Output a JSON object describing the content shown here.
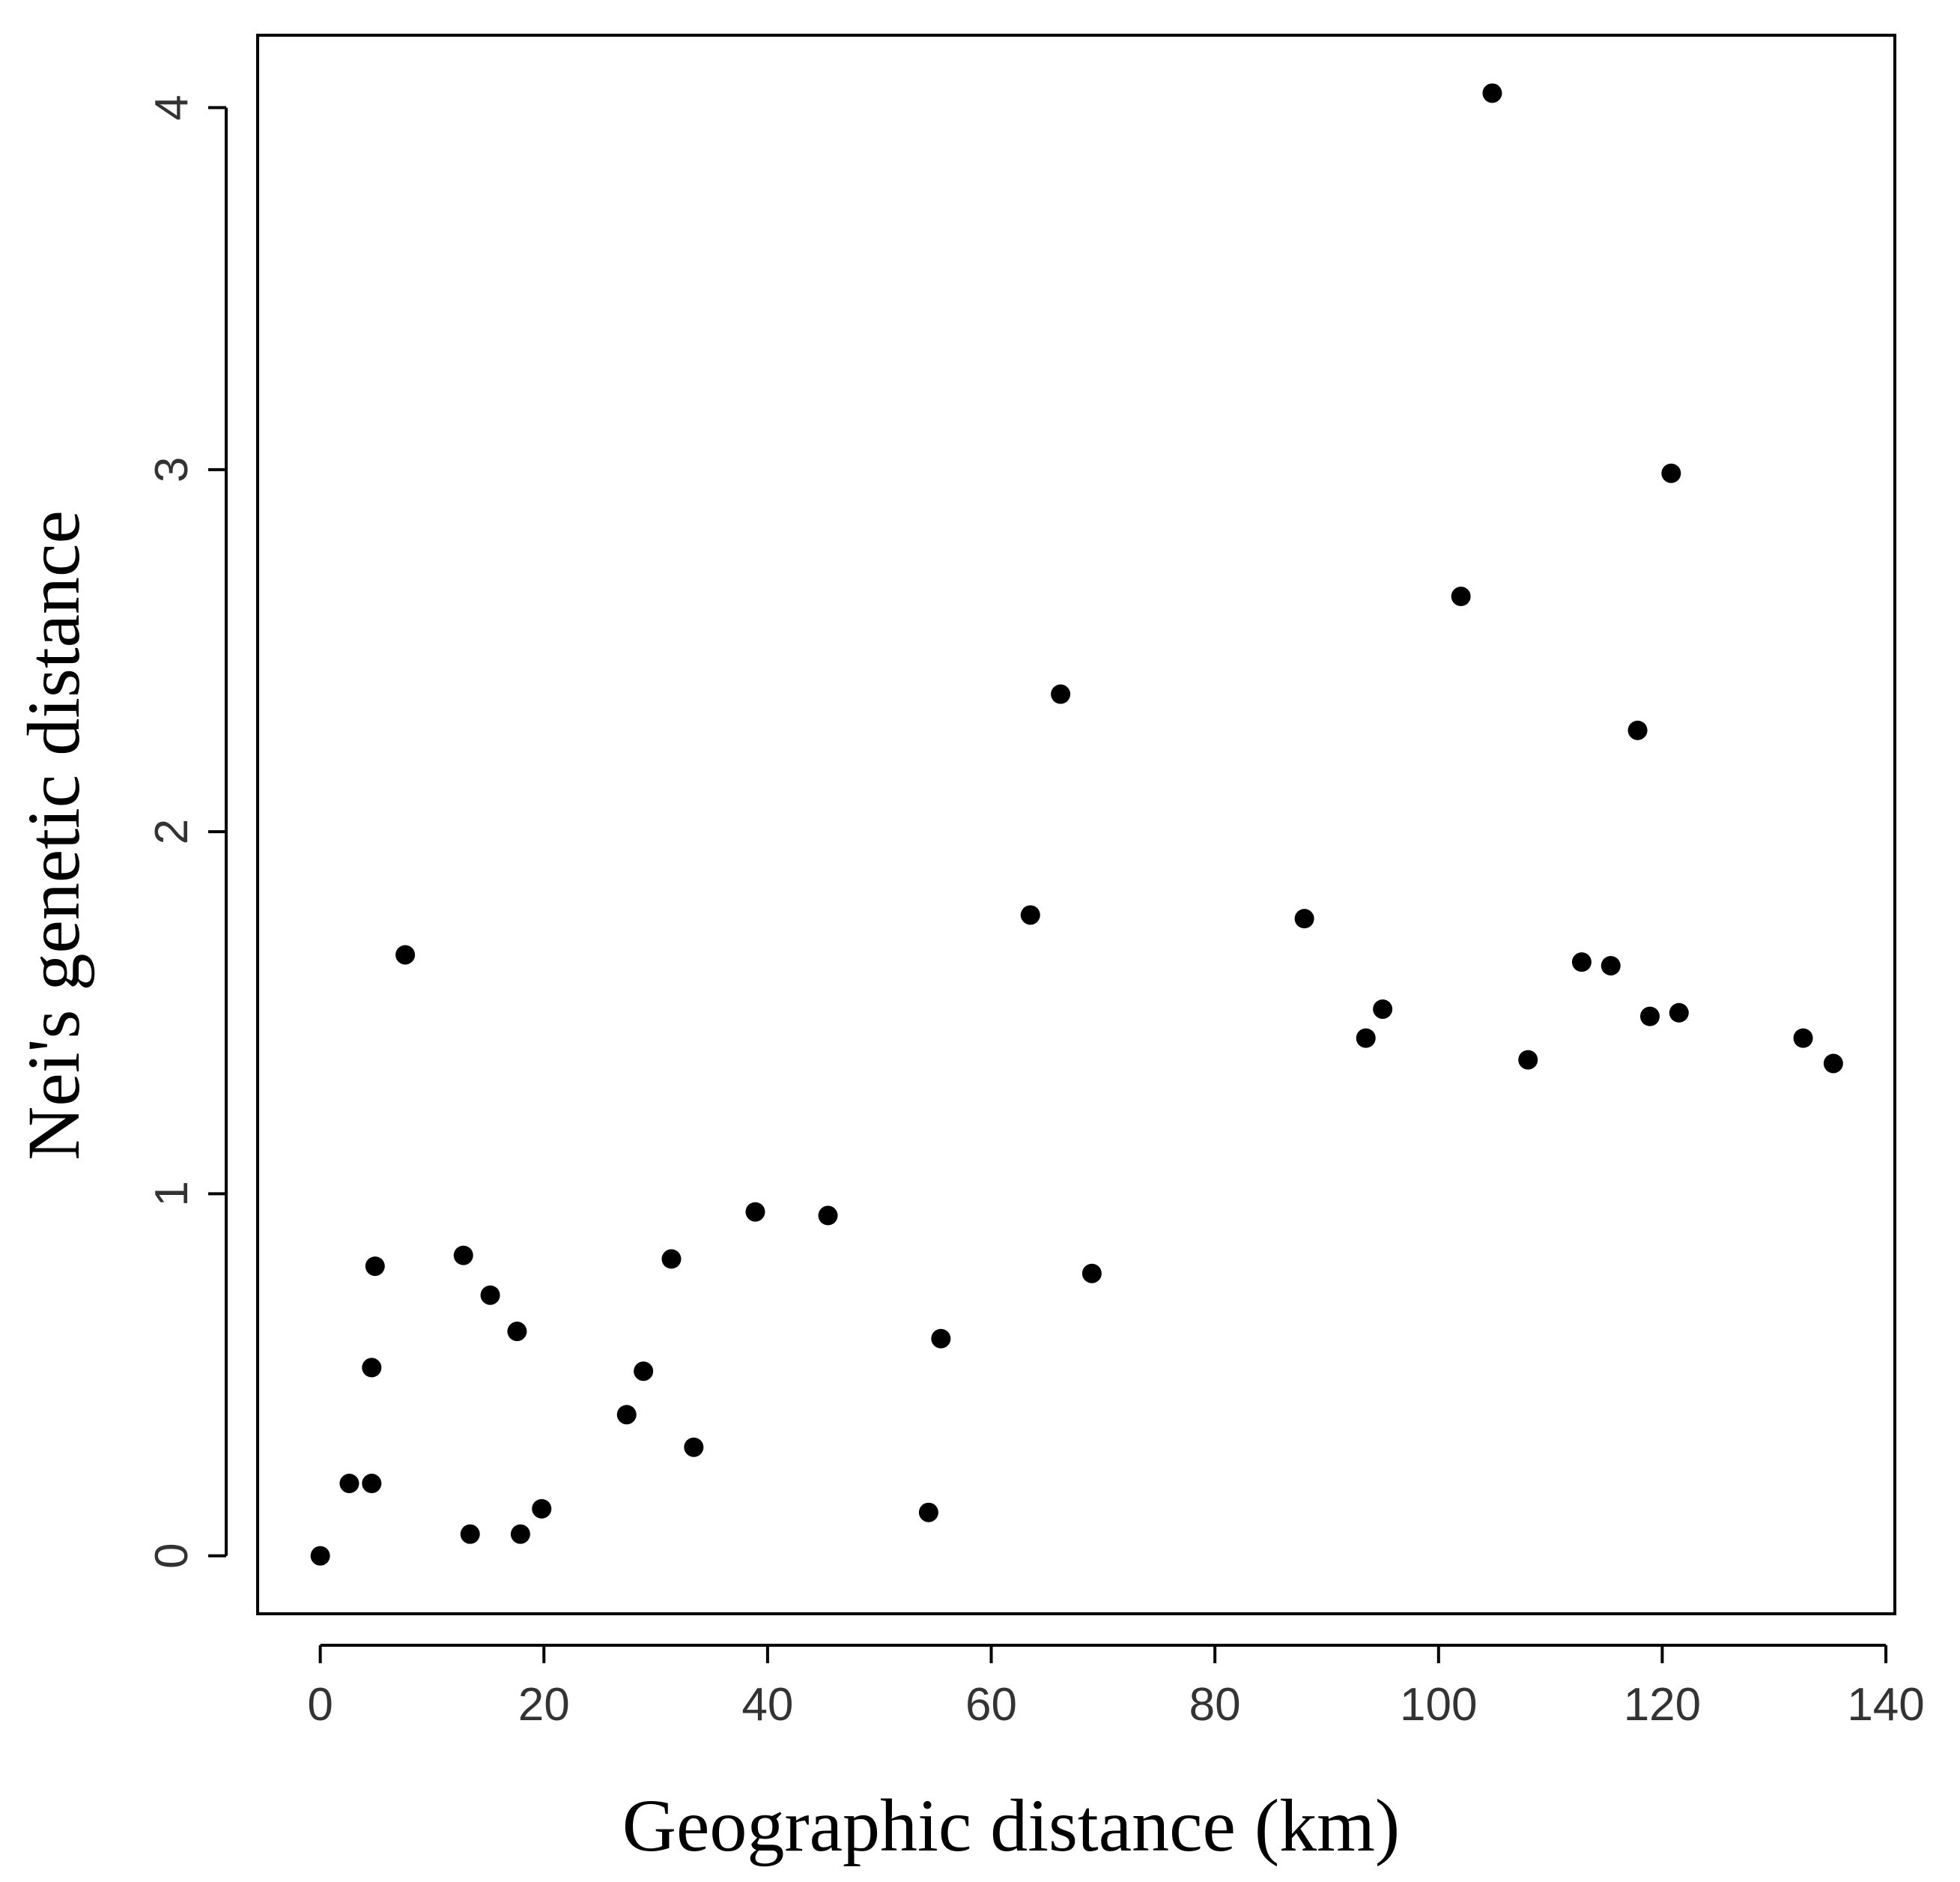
{
  "chart_data": {
    "type": "scatter",
    "title": "",
    "xlabel": "Geographic distance  (km)",
    "ylabel": "Nei's genetic distance",
    "xlim": [
      -5.6,
      140.8
    ],
    "ylim": [
      -0.16,
      4.2
    ],
    "x_ticks": [
      0,
      20,
      40,
      60,
      80,
      100,
      120,
      140
    ],
    "y_ticks": [
      0,
      1,
      2,
      3,
      4
    ],
    "grid": false,
    "legend": "none",
    "point_color": "#000000",
    "points": [
      {
        "x": 0,
        "y": 0.0
      },
      {
        "x": 2.6,
        "y": 0.2
      },
      {
        "x": 4.6,
        "y": 0.2
      },
      {
        "x": 4.6,
        "y": 0.52
      },
      {
        "x": 4.9,
        "y": 0.8
      },
      {
        "x": 7.6,
        "y": 1.66
      },
      {
        "x": 12.8,
        "y": 0.83
      },
      {
        "x": 13.4,
        "y": 0.06
      },
      {
        "x": 15.2,
        "y": 0.72
      },
      {
        "x": 17.6,
        "y": 0.62
      },
      {
        "x": 17.9,
        "y": 0.06
      },
      {
        "x": 19.8,
        "y": 0.13
      },
      {
        "x": 27.4,
        "y": 0.39
      },
      {
        "x": 28.9,
        "y": 0.51
      },
      {
        "x": 31.4,
        "y": 0.82
      },
      {
        "x": 33.4,
        "y": 0.3
      },
      {
        "x": 38.9,
        "y": 0.95
      },
      {
        "x": 45.4,
        "y": 0.94
      },
      {
        "x": 54.4,
        "y": 0.12
      },
      {
        "x": 55.5,
        "y": 0.6
      },
      {
        "x": 63.5,
        "y": 1.77
      },
      {
        "x": 66.2,
        "y": 2.38
      },
      {
        "x": 69.0,
        "y": 0.78
      },
      {
        "x": 88.0,
        "y": 1.76
      },
      {
        "x": 93.5,
        "y": 1.43
      },
      {
        "x": 95.0,
        "y": 1.51
      },
      {
        "x": 102.0,
        "y": 2.65
      },
      {
        "x": 104.8,
        "y": 4.04
      },
      {
        "x": 108.0,
        "y": 1.37
      },
      {
        "x": 112.8,
        "y": 1.64
      },
      {
        "x": 115.4,
        "y": 1.63
      },
      {
        "x": 117.8,
        "y": 2.28
      },
      {
        "x": 118.9,
        "y": 1.49
      },
      {
        "x": 120.8,
        "y": 2.99
      },
      {
        "x": 121.5,
        "y": 1.5
      },
      {
        "x": 132.6,
        "y": 1.43
      },
      {
        "x": 135.3,
        "y": 1.36
      }
    ]
  }
}
